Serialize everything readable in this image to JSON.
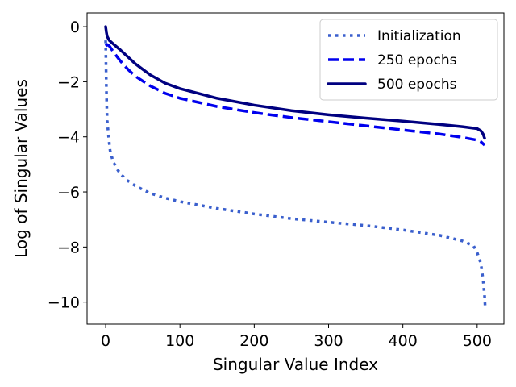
{
  "chart_data": {
    "type": "line",
    "title": "",
    "xlabel": "Singular Value Index",
    "ylabel": "Log of Singular Values",
    "xlim": [
      -25,
      536
    ],
    "ylim": [
      -10.8,
      0.5
    ],
    "xticks": [
      0,
      100,
      200,
      300,
      400,
      500
    ],
    "xtick_labels": [
      "0",
      "100",
      "200",
      "300",
      "400",
      "500"
    ],
    "yticks": [
      0,
      -2,
      -4,
      -6,
      -8,
      -10
    ],
    "ytick_labels": [
      "0",
      "−2",
      "−4",
      "−6",
      "−8",
      "−10"
    ],
    "grid": false,
    "legend_position": "top-right",
    "series": [
      {
        "name": "Initialization",
        "color": "#3a5fcd",
        "style": "dotted",
        "x": [
          0,
          1,
          2,
          4,
          6,
          10,
          15,
          20,
          30,
          40,
          60,
          80,
          100,
          150,
          200,
          250,
          300,
          350,
          400,
          450,
          480,
          495,
          500,
          505,
          508,
          510,
          511
        ],
        "y": [
          -0.5,
          -2.3,
          -3.4,
          -4.0,
          -4.5,
          -4.9,
          -5.15,
          -5.35,
          -5.6,
          -5.78,
          -6.05,
          -6.22,
          -6.35,
          -6.6,
          -6.8,
          -6.97,
          -7.1,
          -7.22,
          -7.38,
          -7.58,
          -7.78,
          -7.95,
          -8.2,
          -8.6,
          -9.2,
          -9.8,
          -10.3
        ]
      },
      {
        "name": "250 epochs",
        "color": "#0000ee",
        "style": "dashed",
        "x": [
          0,
          2,
          5,
          10,
          20,
          30,
          40,
          60,
          80,
          100,
          150,
          200,
          250,
          300,
          350,
          400,
          450,
          480,
          500,
          505,
          510
        ],
        "y": [
          -0.7,
          -0.65,
          -0.7,
          -0.9,
          -1.25,
          -1.55,
          -1.8,
          -2.15,
          -2.42,
          -2.6,
          -2.9,
          -3.12,
          -3.3,
          -3.45,
          -3.6,
          -3.75,
          -3.9,
          -4.02,
          -4.12,
          -4.18,
          -4.3
        ]
      },
      {
        "name": "500 epochs",
        "color": "#000080",
        "style": "solid",
        "x": [
          0,
          1,
          2,
          5,
          10,
          20,
          30,
          40,
          60,
          80,
          100,
          150,
          200,
          250,
          300,
          350,
          400,
          450,
          480,
          500,
          505,
          508,
          510
        ],
        "y": [
          0.0,
          -0.2,
          -0.35,
          -0.5,
          -0.62,
          -0.85,
          -1.1,
          -1.35,
          -1.75,
          -2.05,
          -2.25,
          -2.6,
          -2.85,
          -3.05,
          -3.2,
          -3.32,
          -3.43,
          -3.55,
          -3.63,
          -3.7,
          -3.78,
          -3.9,
          -4.05
        ]
      }
    ]
  }
}
